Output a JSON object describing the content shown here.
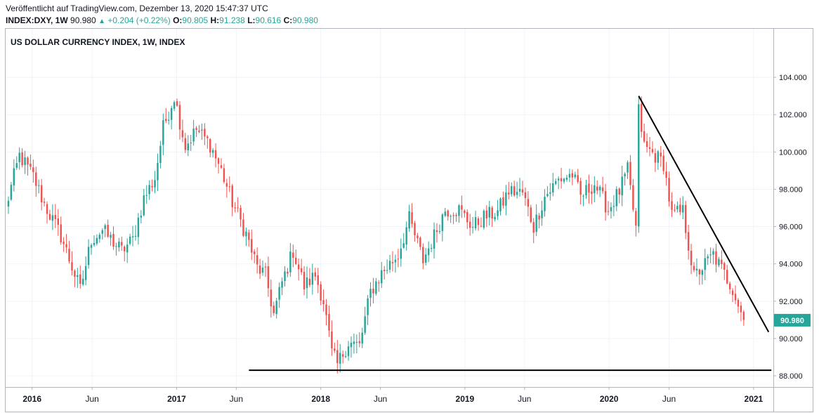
{
  "header": {
    "published": "Veröffentlicht auf TradingView.com, Dezember 13, 2020 15:47:37 UTC",
    "symbol": "INDEX:DXY, 1W",
    "last": "90.980",
    "change": "+0.204 (+0.22%)",
    "o_label": "O:",
    "o_value": "90.805",
    "h_label": "H:",
    "h_value": "91.238",
    "l_label": "L:",
    "l_value": "90.616",
    "c_label": "C:",
    "c_value": "90.980"
  },
  "chart_data": {
    "type": "candlestick",
    "title": "US DOLLAR CURRENCY INDEX, 1W, INDEX",
    "ylim": [
      87.4,
      106.6
    ],
    "yticks": [
      "88.000",
      "90.000",
      "92.000",
      "94.000",
      "96.000",
      "98.000",
      "100.000",
      "102.000",
      "104.000"
    ],
    "x_range": [
      "2015-10-26",
      "2021-02-20"
    ],
    "xticks": [
      {
        "date": "2016-01-01",
        "label": "2016",
        "bold": true
      },
      {
        "date": "2016-06-01",
        "label": "Jun",
        "bold": false
      },
      {
        "date": "2017-01-01",
        "label": "2017",
        "bold": true
      },
      {
        "date": "2017-06-01",
        "label": "Jun",
        "bold": false
      },
      {
        "date": "2018-01-01",
        "label": "2018",
        "bold": true
      },
      {
        "date": "2018-06-01",
        "label": "Jun",
        "bold": false
      },
      {
        "date": "2019-01-01",
        "label": "2019",
        "bold": true
      },
      {
        "date": "2019-06-01",
        "label": "Jun",
        "bold": false
      },
      {
        "date": "2020-01-01",
        "label": "2020",
        "bold": true
      },
      {
        "date": "2020-06-01",
        "label": "Jun",
        "bold": false
      },
      {
        "date": "2021-01-01",
        "label": "2021",
        "bold": true
      }
    ],
    "last_price": "90.980",
    "up_color": "#26a69a",
    "down_color": "#ef5350",
    "close_anchors": [
      [
        "2015-10-26",
        97.0
      ],
      [
        "2015-11-30",
        99.8
      ],
      [
        "2016-01-04",
        98.7
      ],
      [
        "2016-02-01",
        97.2
      ],
      [
        "2016-03-14",
        95.5
      ],
      [
        "2016-05-02",
        92.6
      ],
      [
        "2016-05-30",
        95.3
      ],
      [
        "2016-06-27",
        95.8
      ],
      [
        "2016-08-15",
        94.7
      ],
      [
        "2016-09-12",
        95.3
      ],
      [
        "2016-10-10",
        97.5
      ],
      [
        "2016-11-07",
        98.6
      ],
      [
        "2016-11-28",
        101.3
      ],
      [
        "2016-12-26",
        103.0
      ],
      [
        "2017-01-23",
        100.3
      ],
      [
        "2017-02-20",
        101.2
      ],
      [
        "2017-03-27",
        100.4
      ],
      [
        "2017-04-24",
        99.0
      ],
      [
        "2017-05-22",
        97.3
      ],
      [
        "2017-06-26",
        95.6
      ],
      [
        "2017-07-24",
        93.8
      ],
      [
        "2017-08-14",
        93.4
      ],
      [
        "2017-09-04",
        91.3
      ],
      [
        "2017-09-25",
        93.0
      ],
      [
        "2017-10-23",
        94.7
      ],
      [
        "2017-11-20",
        92.8
      ],
      [
        "2017-12-18",
        93.4
      ],
      [
        "2018-01-08",
        92.0
      ],
      [
        "2018-01-29",
        89.2
      ],
      [
        "2018-02-12",
        88.6
      ],
      [
        "2018-03-12",
        89.8
      ],
      [
        "2018-04-09",
        89.6
      ],
      [
        "2018-05-07",
        92.5
      ],
      [
        "2018-06-04",
        93.5
      ],
      [
        "2018-07-16",
        94.5
      ],
      [
        "2018-08-13",
        96.4
      ],
      [
        "2018-09-17",
        94.2
      ],
      [
        "2018-10-15",
        95.5
      ],
      [
        "2018-11-12",
        96.9
      ],
      [
        "2018-12-17",
        96.9
      ],
      [
        "2019-01-21",
        96.0
      ],
      [
        "2019-02-18",
        96.5
      ],
      [
        "2019-03-25",
        96.8
      ],
      [
        "2019-04-22",
        97.9
      ],
      [
        "2019-05-27",
        97.8
      ],
      [
        "2019-06-24",
        96.0
      ],
      [
        "2019-07-22",
        97.6
      ],
      [
        "2019-08-26",
        98.5
      ],
      [
        "2019-09-30",
        98.8
      ],
      [
        "2019-10-21",
        97.6
      ],
      [
        "2019-11-25",
        98.3
      ],
      [
        "2019-12-30",
        96.9
      ],
      [
        "2020-01-27",
        97.9
      ],
      [
        "2020-02-17",
        99.0
      ],
      [
        "2020-03-09",
        95.9
      ],
      [
        "2020-03-16",
        102.2
      ],
      [
        "2020-03-30",
        100.3
      ],
      [
        "2020-04-27",
        99.8
      ],
      [
        "2020-05-18",
        99.4
      ],
      [
        "2020-06-08",
        96.6
      ],
      [
        "2020-07-06",
        96.8
      ],
      [
        "2020-08-03",
        93.3
      ],
      [
        "2020-09-21",
        94.5
      ],
      [
        "2020-10-12",
        93.7
      ],
      [
        "2020-11-09",
        92.7
      ],
      [
        "2020-12-07",
        91.0
      ]
    ],
    "trend_lines": [
      {
        "from": [
          "2020-03-16",
          103.0
        ],
        "to": [
          "2021-02-08",
          90.35
        ]
      },
      {
        "from": [
          "2017-07-03",
          88.3
        ],
        "to": [
          "2021-02-15",
          88.3
        ]
      }
    ]
  }
}
